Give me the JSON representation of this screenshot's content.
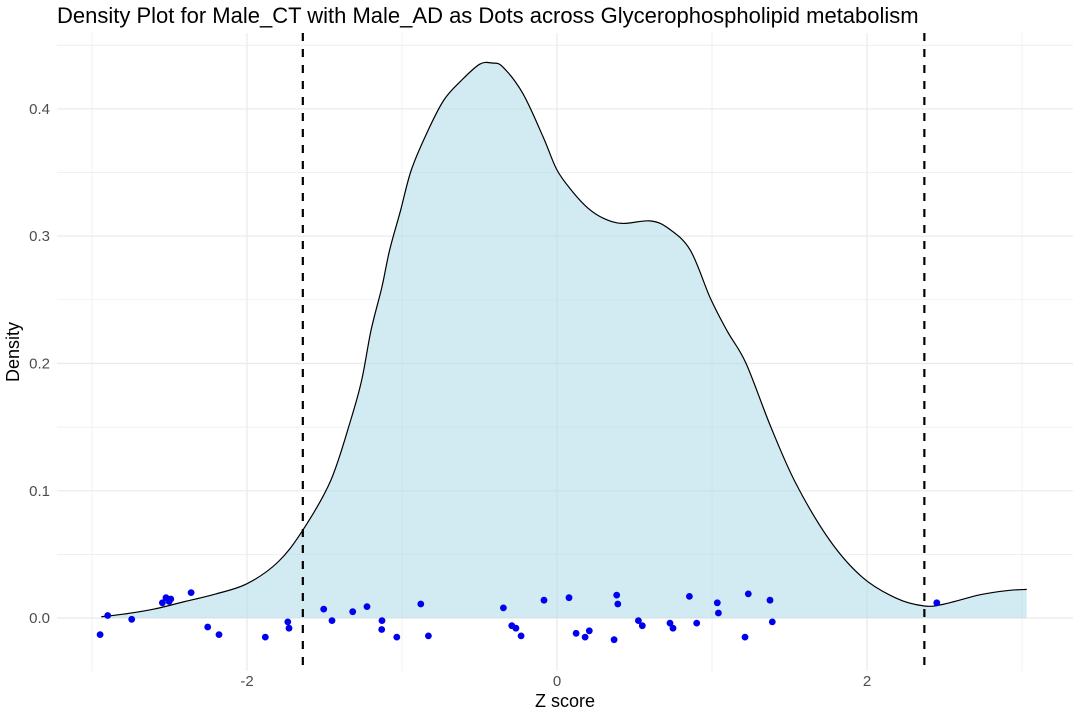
{
  "chart_data": {
    "type": "area",
    "title": "Density Plot for Male_CT with Male_AD as Dots across Glycerophospholipid metabolism",
    "xlabel": "Z score",
    "ylabel": "Density",
    "legend": "none",
    "grid": "on",
    "x_axis": {
      "range": [
        -3.226,
        3.329
      ],
      "major_ticks": [
        {
          "value": -2,
          "label": "-2"
        },
        {
          "value": 0,
          "label": "0"
        },
        {
          "value": 2,
          "label": "2"
        }
      ],
      "minor_ticks": [
        -3,
        -1,
        1,
        3
      ]
    },
    "y_axis": {
      "range": [
        -0.0416,
        0.4596
      ],
      "major_ticks": [
        {
          "value": 0.0,
          "label": "0.0"
        },
        {
          "value": 0.1,
          "label": "0.1"
        },
        {
          "value": 0.2,
          "label": "0.2"
        },
        {
          "value": 0.3,
          "label": "0.3"
        },
        {
          "value": 0.4,
          "label": "0.4"
        }
      ],
      "minor_ticks": [
        0.05,
        0.15,
        0.25,
        0.35,
        0.45
      ]
    },
    "density_curve": [
      [
        -2.94,
        0.001
      ],
      [
        -2.8,
        0.003
      ],
      [
        -2.6,
        0.007
      ],
      [
        -2.4,
        0.013
      ],
      [
        -2.2,
        0.019
      ],
      [
        -2.0,
        0.027
      ],
      [
        -1.8,
        0.044
      ],
      [
        -1.64,
        0.069
      ],
      [
        -1.46,
        0.108
      ],
      [
        -1.33,
        0.156
      ],
      [
        -1.26,
        0.187
      ],
      [
        -1.2,
        0.226
      ],
      [
        -1.13,
        0.26
      ],
      [
        -1.08,
        0.289
      ],
      [
        -1.01,
        0.32
      ],
      [
        -0.94,
        0.352
      ],
      [
        -0.84,
        0.381
      ],
      [
        -0.73,
        0.407
      ],
      [
        -0.62,
        0.422
      ],
      [
        -0.5,
        0.435
      ],
      [
        -0.42,
        0.436
      ],
      [
        -0.35,
        0.433
      ],
      [
        -0.22,
        0.412
      ],
      [
        -0.09,
        0.378
      ],
      [
        0.0,
        0.352
      ],
      [
        0.1,
        0.335
      ],
      [
        0.2,
        0.322
      ],
      [
        0.3,
        0.314
      ],
      [
        0.42,
        0.31
      ],
      [
        0.6,
        0.312
      ],
      [
        0.72,
        0.306
      ],
      [
        0.86,
        0.289
      ],
      [
        0.99,
        0.251
      ],
      [
        1.1,
        0.225
      ],
      [
        1.22,
        0.2
      ],
      [
        1.38,
        0.15
      ],
      [
        1.54,
        0.106
      ],
      [
        1.76,
        0.061
      ],
      [
        1.97,
        0.032
      ],
      [
        2.19,
        0.0155
      ],
      [
        2.37,
        0.0095
      ],
      [
        2.5,
        0.011
      ],
      [
        2.72,
        0.018
      ],
      [
        2.9,
        0.0215
      ],
      [
        3.03,
        0.0225
      ]
    ],
    "dots": [
      [
        -2.948,
        -0.013
      ],
      [
        -2.899,
        0.002
      ],
      [
        -2.744,
        -0.001
      ],
      [
        -2.546,
        0.012
      ],
      [
        -2.523,
        0.016
      ],
      [
        -2.503,
        0.013
      ],
      [
        -2.492,
        0.015
      ],
      [
        -2.361,
        0.02
      ],
      [
        -2.254,
        -0.007
      ],
      [
        -2.181,
        -0.013
      ],
      [
        -1.882,
        -0.015
      ],
      [
        -1.737,
        -0.003
      ],
      [
        -1.729,
        -0.008
      ],
      [
        -1.505,
        0.007
      ],
      [
        -1.452,
        -0.002
      ],
      [
        -1.318,
        0.005
      ],
      [
        -1.226,
        0.009
      ],
      [
        -1.131,
        -0.009
      ],
      [
        -1.129,
        -0.002
      ],
      [
        -1.034,
        -0.015
      ],
      [
        -0.879,
        0.011
      ],
      [
        -0.83,
        -0.014
      ],
      [
        -0.346,
        0.008
      ],
      [
        -0.292,
        -0.006
      ],
      [
        -0.265,
        -0.008
      ],
      [
        -0.232,
        -0.014
      ],
      [
        -0.084,
        0.014
      ],
      [
        0.077,
        0.016
      ],
      [
        0.123,
        -0.012
      ],
      [
        0.181,
        -0.015
      ],
      [
        0.208,
        -0.01
      ],
      [
        0.368,
        -0.017
      ],
      [
        0.385,
        0.018
      ],
      [
        0.392,
        0.011
      ],
      [
        0.525,
        -0.002
      ],
      [
        0.55,
        -0.006
      ],
      [
        0.729,
        -0.004
      ],
      [
        0.748,
        -0.008
      ],
      [
        0.854,
        0.017
      ],
      [
        0.901,
        -0.004
      ],
      [
        1.034,
        0.012
      ],
      [
        1.041,
        0.004
      ],
      [
        1.213,
        -0.015
      ],
      [
        1.234,
        0.019
      ],
      [
        1.374,
        0.014
      ],
      [
        1.389,
        -0.003
      ],
      [
        2.45,
        0.012
      ]
    ],
    "vlines": [
      {
        "x": -1.64,
        "style": "dashed"
      },
      {
        "x": 2.37,
        "style": "dashed"
      }
    ],
    "colors": {
      "area_fill": "#ADD8E6",
      "curve_stroke": "#000000",
      "dot_color": "#0000F0",
      "vline_color": "#000000",
      "grid_color": "#EBEBEB",
      "tick_label_color": "#4d4d4d",
      "text_color": "#000000",
      "background": "#ffffff"
    }
  }
}
